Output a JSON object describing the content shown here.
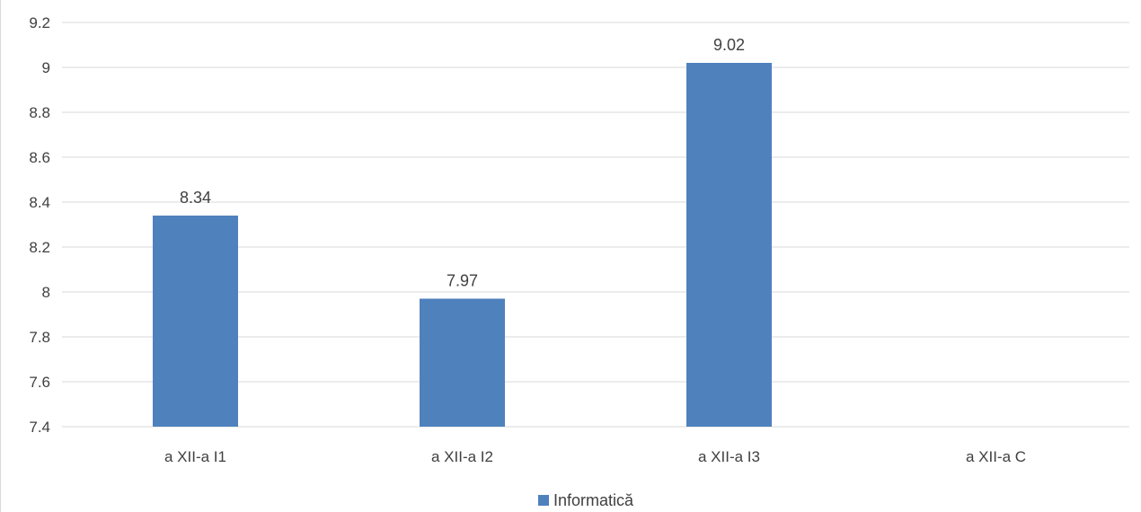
{
  "chart_data": {
    "type": "bar",
    "categories": [
      "a XII-a I1",
      "a XII-a I2",
      "a XII-a I3",
      "a XII-a C"
    ],
    "series": [
      {
        "name": "Informatică",
        "values": [
          8.34,
          7.97,
          9.02,
          null
        ],
        "color": "#4f81bd"
      }
    ],
    "data_labels": [
      "8.34",
      "7.97",
      "9.02",
      ""
    ],
    "yticks": [
      "7.4",
      "7.6",
      "7.8",
      "8",
      "8.2",
      "8.4",
      "8.6",
      "8.8",
      "9",
      "9.2"
    ],
    "ylim": [
      7.4,
      9.2
    ],
    "grid": true,
    "legend_position": "bottom",
    "title": "",
    "xlabel": "",
    "ylabel": ""
  }
}
